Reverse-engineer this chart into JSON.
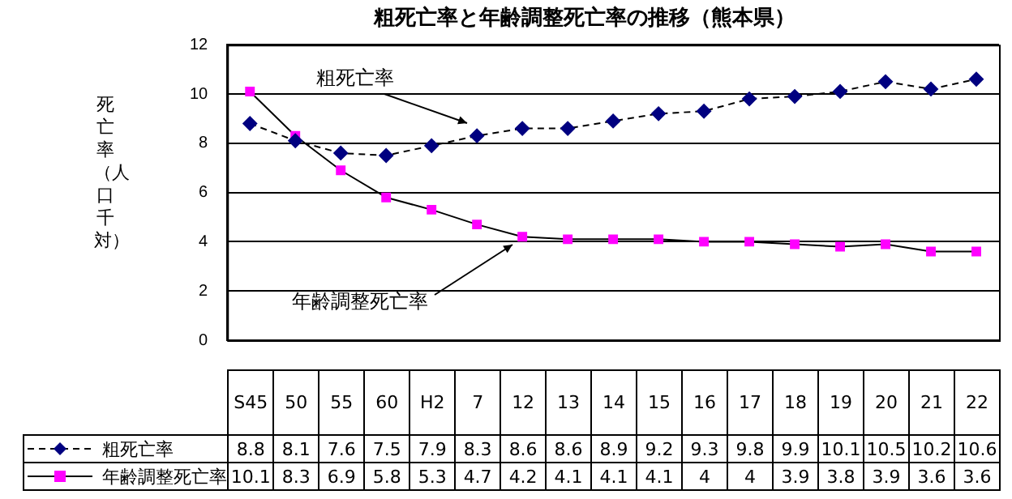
{
  "chart_data": {
    "type": "line",
    "title": "粗死亡率と年齢調整死亡率の推移（熊本県）",
    "ylabel": "死亡率（人口千対）",
    "categories": [
      "S45",
      "50",
      "55",
      "60",
      "H2",
      "7",
      "12",
      "13",
      "14",
      "15",
      "16",
      "17",
      "18",
      "19",
      "20",
      "21",
      "22"
    ],
    "series": [
      {
        "name": "粗死亡率",
        "color": "#000080",
        "marker": "diamond",
        "line_style": "dashed",
        "values": [
          8.8,
          8.1,
          7.6,
          7.5,
          7.9,
          8.3,
          8.6,
          8.6,
          8.9,
          9.2,
          9.3,
          9.8,
          9.9,
          10.1,
          10.5,
          10.2,
          10.6
        ]
      },
      {
        "name": "年齢調整死亡率",
        "color": "#ff00ff",
        "marker": "square",
        "line_style": "solid",
        "values": [
          10.1,
          8.3,
          6.9,
          5.8,
          5.3,
          4.7,
          4.2,
          4.1,
          4.1,
          4.1,
          4,
          4,
          3.9,
          3.8,
          3.9,
          3.6,
          3.6
        ]
      }
    ],
    "ylim": [
      0,
      12
    ],
    "yticks": [
      0,
      2,
      4,
      6,
      8,
      10,
      12
    ],
    "grid": "y",
    "legend": "bottom",
    "data_labels": true,
    "tick_labels": "y"
  }
}
